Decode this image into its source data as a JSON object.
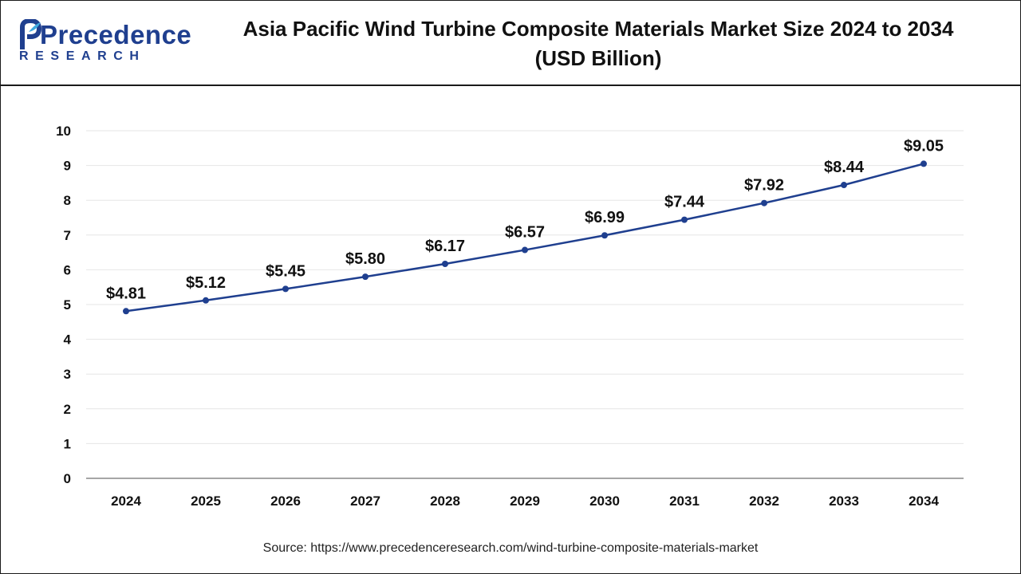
{
  "brand": {
    "name": "Precedence",
    "sub": "RESEARCH",
    "color": "#1f3f8f"
  },
  "chart_data": {
    "type": "line",
    "title_line1": "Asia Pacific Wind Turbine Composite Materials Market Size 2024 to 2034",
    "title_line2": "(USD Billion)",
    "xlabel": "",
    "ylabel": "",
    "categories": [
      "2024",
      "2025",
      "2026",
      "2027",
      "2028",
      "2029",
      "2030",
      "2031",
      "2032",
      "2033",
      "2034"
    ],
    "series": [
      {
        "values": [
          4.81,
          5.12,
          5.45,
          5.8,
          6.17,
          6.57,
          6.99,
          7.44,
          7.92,
          8.44,
          9.05
        ],
        "labels": [
          "$4.81",
          "$5.12",
          "$5.45",
          "$5.80",
          "$6.17",
          "$6.57",
          "$6.99",
          "$7.44",
          "$7.92",
          "$8.44",
          "$9.05"
        ],
        "color": "#1f3f8f"
      }
    ],
    "ylim": [
      0,
      10
    ],
    "yticks": [
      "0",
      "1",
      "2",
      "3",
      "4",
      "5",
      "6",
      "7",
      "8",
      "9",
      "10"
    ],
    "grid": true,
    "legend": "none"
  },
  "source": "Source: https://www.precedenceresearch.com/wind-turbine-composite-materials-market"
}
